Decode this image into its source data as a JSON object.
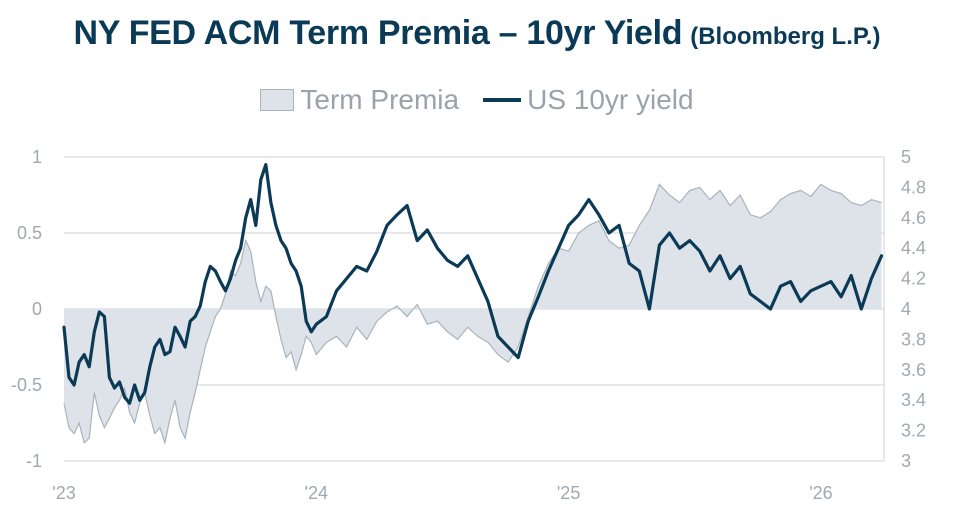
{
  "title": "NY FED ACM Term Premia – 10yr Yield",
  "subtitle": "(Bloomberg L.P.)",
  "colors": {
    "title": "#0b3a57",
    "yield_line": "#0b3a57",
    "premia_fill": "#dde3e8",
    "premia_stroke": "#a9b3bc",
    "grid": "#cdd3d8",
    "tick_text": "#a1a9b0"
  },
  "chart_data": {
    "type": "area+line",
    "title": "NY FED ACM Term Premia – 10yr Yield",
    "legend": [
      "Term Premia",
      "US 10yr yield"
    ],
    "legend_position": "top-center",
    "x_range": [
      2023.0,
      2026.25
    ],
    "x_ticks": [
      {
        "value": 2023,
        "label": "'23"
      },
      {
        "value": 2024,
        "label": "'24"
      },
      {
        "value": 2025,
        "label": "'25"
      },
      {
        "value": 2026,
        "label": "'26"
      }
    ],
    "y_left": {
      "label": "Term Premia",
      "range": [
        -1,
        1
      ],
      "ticks": [
        1,
        0.5,
        0,
        -0.5,
        -1
      ],
      "tick_labels": [
        "1",
        "0.5",
        "0",
        "-0.5",
        "-1"
      ],
      "grid": true
    },
    "y_right": {
      "label": "US 10yr yield",
      "range": [
        3,
        5
      ],
      "ticks": [
        5,
        4.8,
        4.6,
        4.4,
        4.2,
        4,
        3.8,
        3.6,
        3.4,
        3.2,
        3
      ],
      "tick_labels": [
        "5",
        "4.8",
        "4.6",
        "4.4",
        "4.2",
        "4",
        "3.8",
        "3.6",
        "3.4",
        "3.2",
        "3"
      ]
    },
    "series": [
      {
        "name": "Term Premia",
        "axis": "left",
        "kind": "area",
        "x": [
          2023.0,
          2023.02,
          2023.04,
          2023.06,
          2023.08,
          2023.1,
          2023.12,
          2023.14,
          2023.16,
          2023.18,
          2023.2,
          2023.22,
          2023.24,
          2023.26,
          2023.28,
          2023.3,
          2023.32,
          2023.34,
          2023.36,
          2023.38,
          2023.4,
          2023.42,
          2023.44,
          2023.46,
          2023.48,
          2023.5,
          2023.52,
          2023.54,
          2023.56,
          2023.58,
          2023.6,
          2023.62,
          2023.64,
          2023.66,
          2023.68,
          2023.7,
          2023.72,
          2023.74,
          2023.76,
          2023.78,
          2023.8,
          2023.82,
          2023.84,
          2023.86,
          2023.88,
          2023.9,
          2023.92,
          2023.94,
          2023.96,
          2023.98,
          2024.0,
          2024.04,
          2024.08,
          2024.12,
          2024.16,
          2024.2,
          2024.24,
          2024.28,
          2024.32,
          2024.36,
          2024.4,
          2024.44,
          2024.48,
          2024.52,
          2024.56,
          2024.6,
          2024.64,
          2024.68,
          2024.72,
          2024.76,
          2024.8,
          2024.84,
          2024.88,
          2024.92,
          2024.96,
          2025.0,
          2025.04,
          2025.08,
          2025.12,
          2025.16,
          2025.2,
          2025.24,
          2025.28,
          2025.32,
          2025.36,
          2025.4,
          2025.44,
          2025.48,
          2025.52,
          2025.56,
          2025.6,
          2025.64,
          2025.68,
          2025.72,
          2025.76,
          2025.8,
          2025.84,
          2025.88,
          2025.92,
          2025.96,
          2026.0,
          2026.04,
          2026.08,
          2026.12,
          2026.16,
          2026.2,
          2026.24
        ],
        "values": [
          -0.62,
          -0.78,
          -0.82,
          -0.75,
          -0.88,
          -0.85,
          -0.55,
          -0.7,
          -0.78,
          -0.72,
          -0.65,
          -0.6,
          -0.52,
          -0.68,
          -0.75,
          -0.62,
          -0.55,
          -0.7,
          -0.82,
          -0.78,
          -0.88,
          -0.72,
          -0.6,
          -0.78,
          -0.85,
          -0.68,
          -0.55,
          -0.4,
          -0.25,
          -0.15,
          -0.05,
          0.0,
          0.1,
          0.25,
          0.22,
          0.3,
          0.45,
          0.38,
          0.18,
          0.05,
          0.15,
          0.12,
          -0.05,
          -0.2,
          -0.32,
          -0.28,
          -0.4,
          -0.3,
          -0.18,
          -0.22,
          -0.3,
          -0.22,
          -0.18,
          -0.25,
          -0.12,
          -0.2,
          -0.08,
          -0.02,
          0.02,
          -0.05,
          0.03,
          -0.1,
          -0.08,
          -0.15,
          -0.2,
          -0.12,
          -0.18,
          -0.22,
          -0.3,
          -0.35,
          -0.25,
          -0.05,
          0.15,
          0.3,
          0.4,
          0.38,
          0.5,
          0.55,
          0.58,
          0.45,
          0.4,
          0.42,
          0.55,
          0.65,
          0.82,
          0.75,
          0.7,
          0.78,
          0.8,
          0.72,
          0.78,
          0.68,
          0.75,
          0.62,
          0.6,
          0.64,
          0.72,
          0.76,
          0.78,
          0.74,
          0.82,
          0.78,
          0.76,
          0.7,
          0.68,
          0.72,
          0.7
        ]
      },
      {
        "name": "US 10yr yield",
        "axis": "right",
        "kind": "line",
        "x": [
          2023.0,
          2023.02,
          2023.04,
          2023.06,
          2023.08,
          2023.1,
          2023.12,
          2023.14,
          2023.16,
          2023.18,
          2023.2,
          2023.22,
          2023.24,
          2023.26,
          2023.28,
          2023.3,
          2023.32,
          2023.34,
          2023.36,
          2023.38,
          2023.4,
          2023.42,
          2023.44,
          2023.46,
          2023.48,
          2023.5,
          2023.52,
          2023.54,
          2023.56,
          2023.58,
          2023.6,
          2023.62,
          2023.64,
          2023.66,
          2023.68,
          2023.7,
          2023.72,
          2023.74,
          2023.76,
          2023.78,
          2023.8,
          2023.82,
          2023.84,
          2023.86,
          2023.88,
          2023.9,
          2023.92,
          2023.94,
          2023.96,
          2023.98,
          2024.0,
          2024.04,
          2024.08,
          2024.12,
          2024.16,
          2024.2,
          2024.24,
          2024.28,
          2024.32,
          2024.36,
          2024.4,
          2024.44,
          2024.48,
          2024.52,
          2024.56,
          2024.6,
          2024.64,
          2024.68,
          2024.72,
          2024.76,
          2024.8,
          2024.84,
          2024.88,
          2024.92,
          2024.96,
          2025.0,
          2025.04,
          2025.08,
          2025.12,
          2025.16,
          2025.2,
          2025.24,
          2025.28,
          2025.32,
          2025.36,
          2025.4,
          2025.44,
          2025.48,
          2025.52,
          2025.56,
          2025.6,
          2025.64,
          2025.68,
          2025.72,
          2025.76,
          2025.8,
          2025.84,
          2025.88,
          2025.92,
          2025.96,
          2026.0,
          2026.04,
          2026.08,
          2026.12,
          2026.16,
          2026.2,
          2026.24
        ],
        "values": [
          3.88,
          3.55,
          3.5,
          3.65,
          3.7,
          3.62,
          3.85,
          3.98,
          3.95,
          3.55,
          3.48,
          3.52,
          3.42,
          3.38,
          3.5,
          3.4,
          3.45,
          3.62,
          3.75,
          3.8,
          3.7,
          3.72,
          3.88,
          3.82,
          3.75,
          3.92,
          3.95,
          4.02,
          4.18,
          4.28,
          4.25,
          4.18,
          4.12,
          4.2,
          4.32,
          4.4,
          4.6,
          4.72,
          4.55,
          4.85,
          4.95,
          4.7,
          4.55,
          4.45,
          4.4,
          4.3,
          4.25,
          4.15,
          3.92,
          3.85,
          3.9,
          3.95,
          4.12,
          4.2,
          4.28,
          4.25,
          4.38,
          4.55,
          4.62,
          4.68,
          4.45,
          4.52,
          4.4,
          4.32,
          4.28,
          4.35,
          4.2,
          4.05,
          3.82,
          3.75,
          3.68,
          3.92,
          4.08,
          4.25,
          4.4,
          4.55,
          4.62,
          4.72,
          4.62,
          4.5,
          4.55,
          4.3,
          4.25,
          4.0,
          4.42,
          4.5,
          4.4,
          4.45,
          4.38,
          4.25,
          4.35,
          4.2,
          4.28,
          4.1,
          4.05,
          4.0,
          4.15,
          4.18,
          4.05,
          4.12,
          4.15,
          4.18,
          4.08,
          4.22,
          4.0,
          4.2,
          4.35
        ]
      }
    ]
  }
}
